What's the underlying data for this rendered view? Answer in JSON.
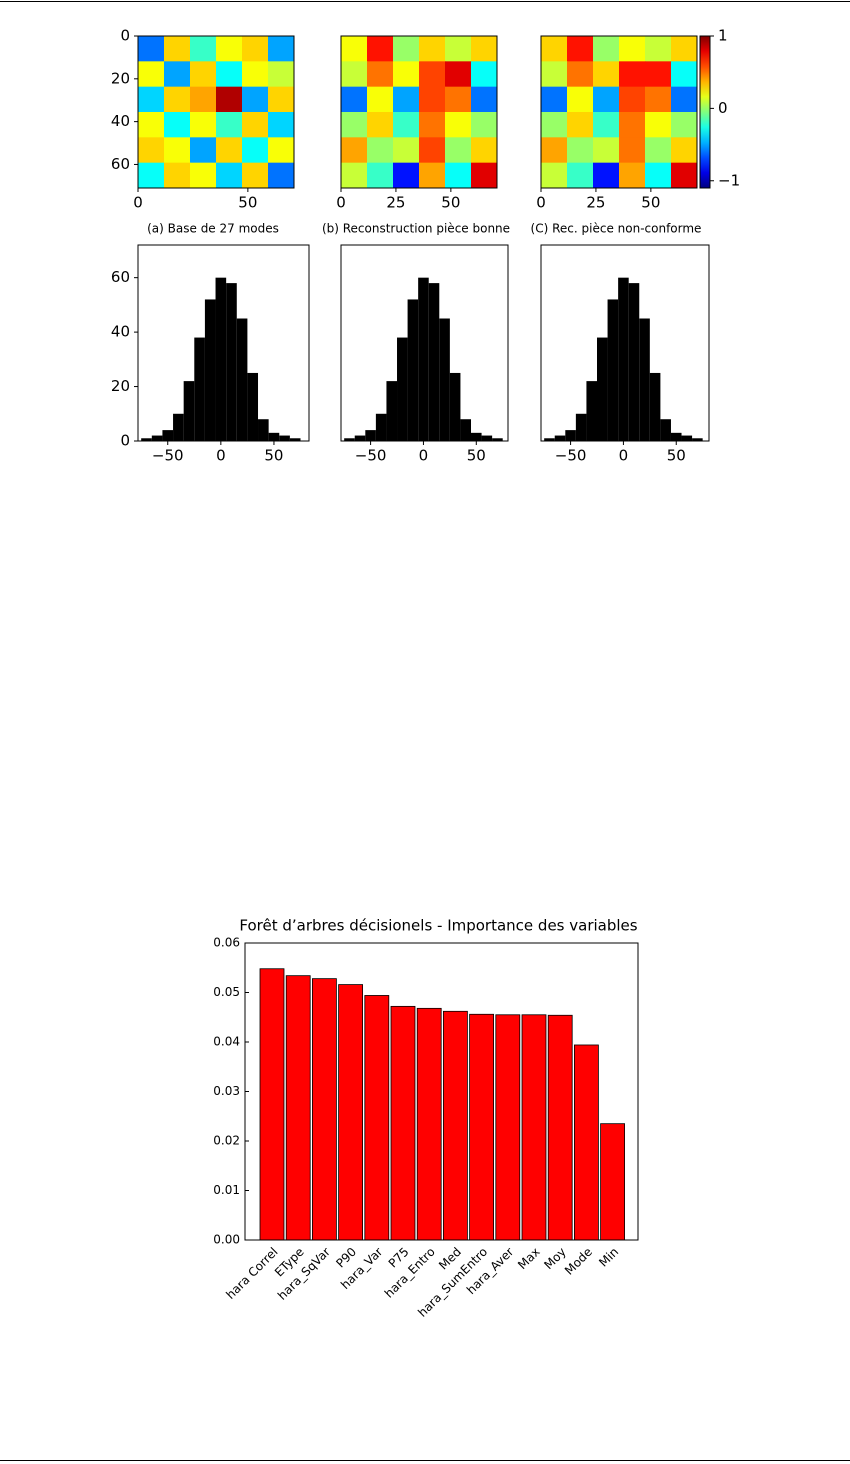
{
  "chart_data": [
    {
      "type": "heatmap",
      "caption": "(a) Base de 27 modes",
      "colormap": "jet",
      "clim": [
        -1.1,
        1
      ],
      "xlim": [
        0,
        71
      ],
      "ylim": [
        0,
        71
      ],
      "xticks": [
        0,
        50
      ],
      "yticks": [
        0,
        20,
        40,
        60
      ],
      "z": [
        [
          -0.6,
          0.3,
          -0.2,
          0.2,
          0.3,
          -0.5
        ],
        [
          0.2,
          -0.5,
          0.3,
          -0.3,
          0.2,
          0.1
        ],
        [
          -0.4,
          0.3,
          0.4,
          0.9,
          -0.5,
          0.3
        ],
        [
          0.2,
          -0.3,
          0.2,
          -0.2,
          0.3,
          -0.4
        ],
        [
          0.3,
          0.2,
          -0.5,
          0.3,
          -0.3,
          0.2
        ],
        [
          -0.3,
          0.3,
          0.2,
          -0.4,
          0.3,
          -0.6
        ]
      ]
    },
    {
      "type": "heatmap",
      "caption": "(b) Reconstruction pièce bonne",
      "colormap": "jet",
      "clim": [
        -1.1,
        1
      ],
      "xlim": [
        0,
        71
      ],
      "ylim": [
        0,
        71
      ],
      "xticks": [
        0,
        25,
        50
      ],
      "z": [
        [
          0.2,
          0.7,
          0.0,
          0.3,
          0.1,
          0.3
        ],
        [
          0.1,
          0.5,
          0.2,
          0.6,
          0.8,
          -0.3
        ],
        [
          -0.6,
          0.2,
          -0.5,
          0.6,
          0.5,
          -0.6
        ],
        [
          0.0,
          0.3,
          -0.2,
          0.5,
          0.2,
          0.0
        ],
        [
          0.4,
          0.0,
          0.1,
          0.6,
          0.0,
          0.3
        ],
        [
          0.1,
          -0.2,
          -0.8,
          0.4,
          -0.3,
          0.8
        ]
      ]
    },
    {
      "type": "heatmap",
      "caption": "(C) Rec. pièce non-conforme",
      "colormap": "jet",
      "clim": [
        -1.1,
        1
      ],
      "xlim": [
        0,
        71
      ],
      "ylim": [
        0,
        71
      ],
      "xticks": [
        0,
        25,
        50
      ],
      "colorbar_ticks": [
        {
          "value": -1,
          "label": "−1"
        },
        0,
        1
      ],
      "z": [
        [
          0.3,
          0.7,
          0.0,
          0.2,
          0.1,
          0.3
        ],
        [
          0.1,
          0.5,
          0.3,
          0.7,
          0.7,
          -0.3
        ],
        [
          -0.6,
          0.2,
          -0.5,
          0.6,
          0.5,
          -0.6
        ],
        [
          0.0,
          0.3,
          -0.2,
          0.5,
          0.2,
          0.0
        ],
        [
          0.4,
          0.0,
          0.1,
          0.5,
          0.0,
          0.3
        ],
        [
          0.1,
          -0.2,
          -0.8,
          0.4,
          -0.3,
          0.8
        ]
      ]
    },
    {
      "type": "histogram",
      "color": "#000000",
      "xlim": [
        -78,
        83
      ],
      "ylim": [
        0,
        72
      ],
      "xticks": [
        {
          "value": -50,
          "label": "−50"
        },
        0,
        50
      ],
      "yticks": [
        0,
        20,
        40,
        60
      ],
      "bins": [
        -75,
        -65,
        -55,
        -45,
        -35,
        -25,
        -15,
        -5,
        5,
        15,
        25,
        35,
        45,
        55,
        65,
        75
      ],
      "counts": [
        1,
        2,
        4,
        10,
        22,
        38,
        52,
        60,
        58,
        45,
        25,
        8,
        3,
        2,
        1
      ]
    },
    {
      "type": "histogram",
      "color": "#000000",
      "xlim": [
        -78,
        80
      ],
      "ylim": [
        0,
        72
      ],
      "xticks": [
        {
          "value": -50,
          "label": "−50"
        },
        0,
        50
      ],
      "bins": [
        -75,
        -65,
        -55,
        -45,
        -35,
        -25,
        -15,
        -5,
        5,
        15,
        25,
        35,
        45,
        55,
        65,
        75
      ],
      "counts": [
        1,
        2,
        4,
        10,
        22,
        38,
        52,
        60,
        58,
        45,
        25,
        8,
        3,
        2,
        1
      ]
    },
    {
      "type": "histogram",
      "color": "#000000",
      "xlim": [
        -78,
        81
      ],
      "ylim": [
        0,
        72
      ],
      "xticks": [
        {
          "value": -50,
          "label": "−50"
        },
        0,
        50
      ],
      "bins": [
        -75,
        -65,
        -55,
        -45,
        -35,
        -25,
        -15,
        -5,
        5,
        15,
        25,
        35,
        45,
        55,
        65,
        75
      ],
      "counts": [
        1,
        2,
        4,
        10,
        22,
        38,
        52,
        60,
        58,
        45,
        25,
        8,
        3,
        2,
        1
      ]
    },
    {
      "type": "bar",
      "title": "Forêt d’arbres décisionels - Importance des variables",
      "color": "#ff0000",
      "categories": [
        "hara Correl",
        "EType",
        "hara_SqVar",
        "P90",
        "hara_Var",
        "P75",
        "hara_Entro",
        "Med",
        "hara_SumEntro",
        "hara_Aver",
        "Max",
        "Moy",
        "Mode",
        "Min"
      ],
      "values": [
        0.0548,
        0.0534,
        0.0528,
        0.0516,
        0.0494,
        0.0472,
        0.0468,
        0.0462,
        0.0456,
        0.0455,
        0.0455,
        0.0454,
        0.0394,
        0.0235
      ],
      "ylim": [
        0,
        0.06
      ],
      "yticks": [
        {
          "value": 0,
          "label": "0.00"
        },
        {
          "value": 0.01,
          "label": "0.01"
        },
        {
          "value": 0.02,
          "label": "0.02"
        },
        {
          "value": 0.03,
          "label": "0.03"
        },
        {
          "value": 0.04,
          "label": "0.04"
        },
        {
          "value": 0.05,
          "label": "0.05"
        },
        {
          "value": 0.06,
          "label": "0.06"
        }
      ]
    }
  ]
}
